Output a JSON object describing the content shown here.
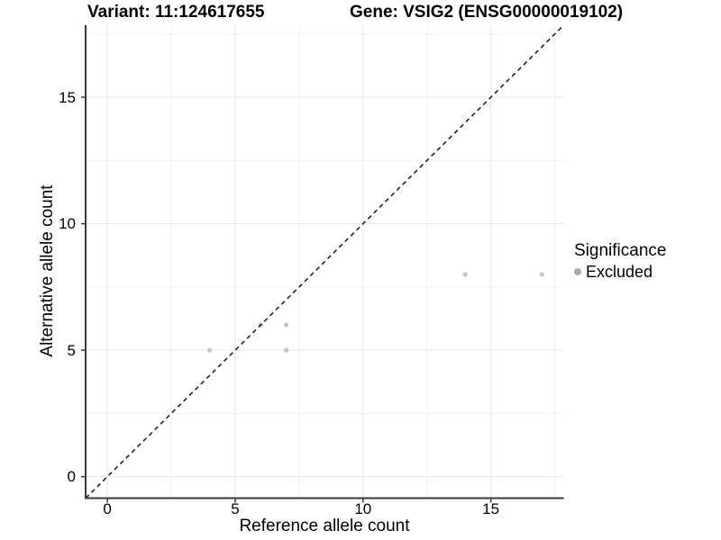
{
  "header": {
    "left_title": "Variant: 11:124617655",
    "right_title": "Gene: VSIG2 (ENSG00000019102)"
  },
  "chart_data": {
    "type": "scatter",
    "title_left": "Variant: 11:124617655",
    "title_right": "Gene: VSIG2 (ENSG00000019102)",
    "xlabel": "Reference allele count",
    "ylabel": "Alternative allele count",
    "xlim": [
      -0.85,
      17.85
    ],
    "ylim": [
      -0.85,
      17.85
    ],
    "x_major_ticks": [
      0,
      5,
      10,
      15
    ],
    "y_major_ticks": [
      0,
      5,
      10,
      15
    ],
    "x_minor_ticks": [
      2.5,
      7.5,
      12.5,
      17.5
    ],
    "y_minor_ticks": [
      2.5,
      7.5,
      12.5,
      17.5
    ],
    "grid": true,
    "reference_line": {
      "type": "identity",
      "equation": "y = x",
      "style": "dashed"
    },
    "series": [
      {
        "name": "Excluded",
        "points": [
          [
            4,
            5
          ],
          [
            6,
            6
          ],
          [
            7,
            6
          ],
          [
            7,
            5
          ],
          [
            14,
            8
          ],
          [
            17,
            8
          ]
        ]
      }
    ],
    "legend": {
      "title": "Significance",
      "position": "right",
      "items": [
        {
          "label": "Excluded",
          "color": "#a8a8a8"
        }
      ]
    },
    "colors": {
      "point": "#c5c5c5",
      "legend_point": "#a8a8a8",
      "grid_major": "#e6e6e6",
      "grid_minor": "#f1f1f1",
      "axis_line": "#3a3a3a",
      "identity_line": "#222222",
      "text": "#000000"
    }
  }
}
